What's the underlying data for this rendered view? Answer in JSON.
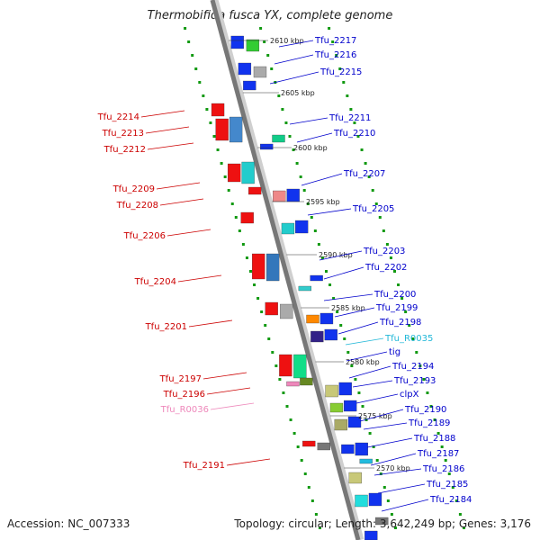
{
  "title": "Thermobifida fusca YX, complete genome",
  "footer": {
    "accession": "Accession: NC_007333",
    "topology": "Topology: circular; Length: 3,642,249 bp; Genes: 3,176"
  },
  "colors": {
    "forward_label": "#0000cc",
    "reverse_label": "#cc0000",
    "trna_forward": "#22b8d8",
    "trna_reverse": "#ee88bb",
    "forward_gene": "#0011ee",
    "reverse_gene": "#ee0000"
  },
  "ticks": [
    "2610 kbp",
    "2605 kbp",
    "2600 kbp",
    "2595 kbp",
    "2590 kbp",
    "2585 kbp",
    "2580 kbp",
    "2575 kbp",
    "2570 kbp"
  ],
  "forward_labels": [
    "Tfu_2217",
    "Tfu_2216",
    "Tfu_2215",
    "Tfu_2211",
    "Tfu_2210",
    "Tfu_2207",
    "Tfu_2205",
    "Tfu_2203",
    "Tfu_2202",
    "Tfu_2200",
    "Tfu_2199",
    "Tfu_2198",
    "Tfu_R0035",
    "tig",
    "Tfu_2194",
    "Tfu_2193",
    "clpX",
    "Tfu_2190",
    "Tfu_2189",
    "Tfu_2188",
    "Tfu_2187",
    "Tfu_2186",
    "Tfu_2185",
    "Tfu_2184"
  ],
  "reverse_labels": [
    "Tfu_2214",
    "Tfu_2213",
    "Tfu_2212",
    "Tfu_2209",
    "Tfu_2208",
    "Tfu_2206",
    "Tfu_2204",
    "Tfu_2201",
    "Tfu_2197",
    "Tfu_2196",
    "Tfu_R0036",
    "Tfu_2191"
  ]
}
